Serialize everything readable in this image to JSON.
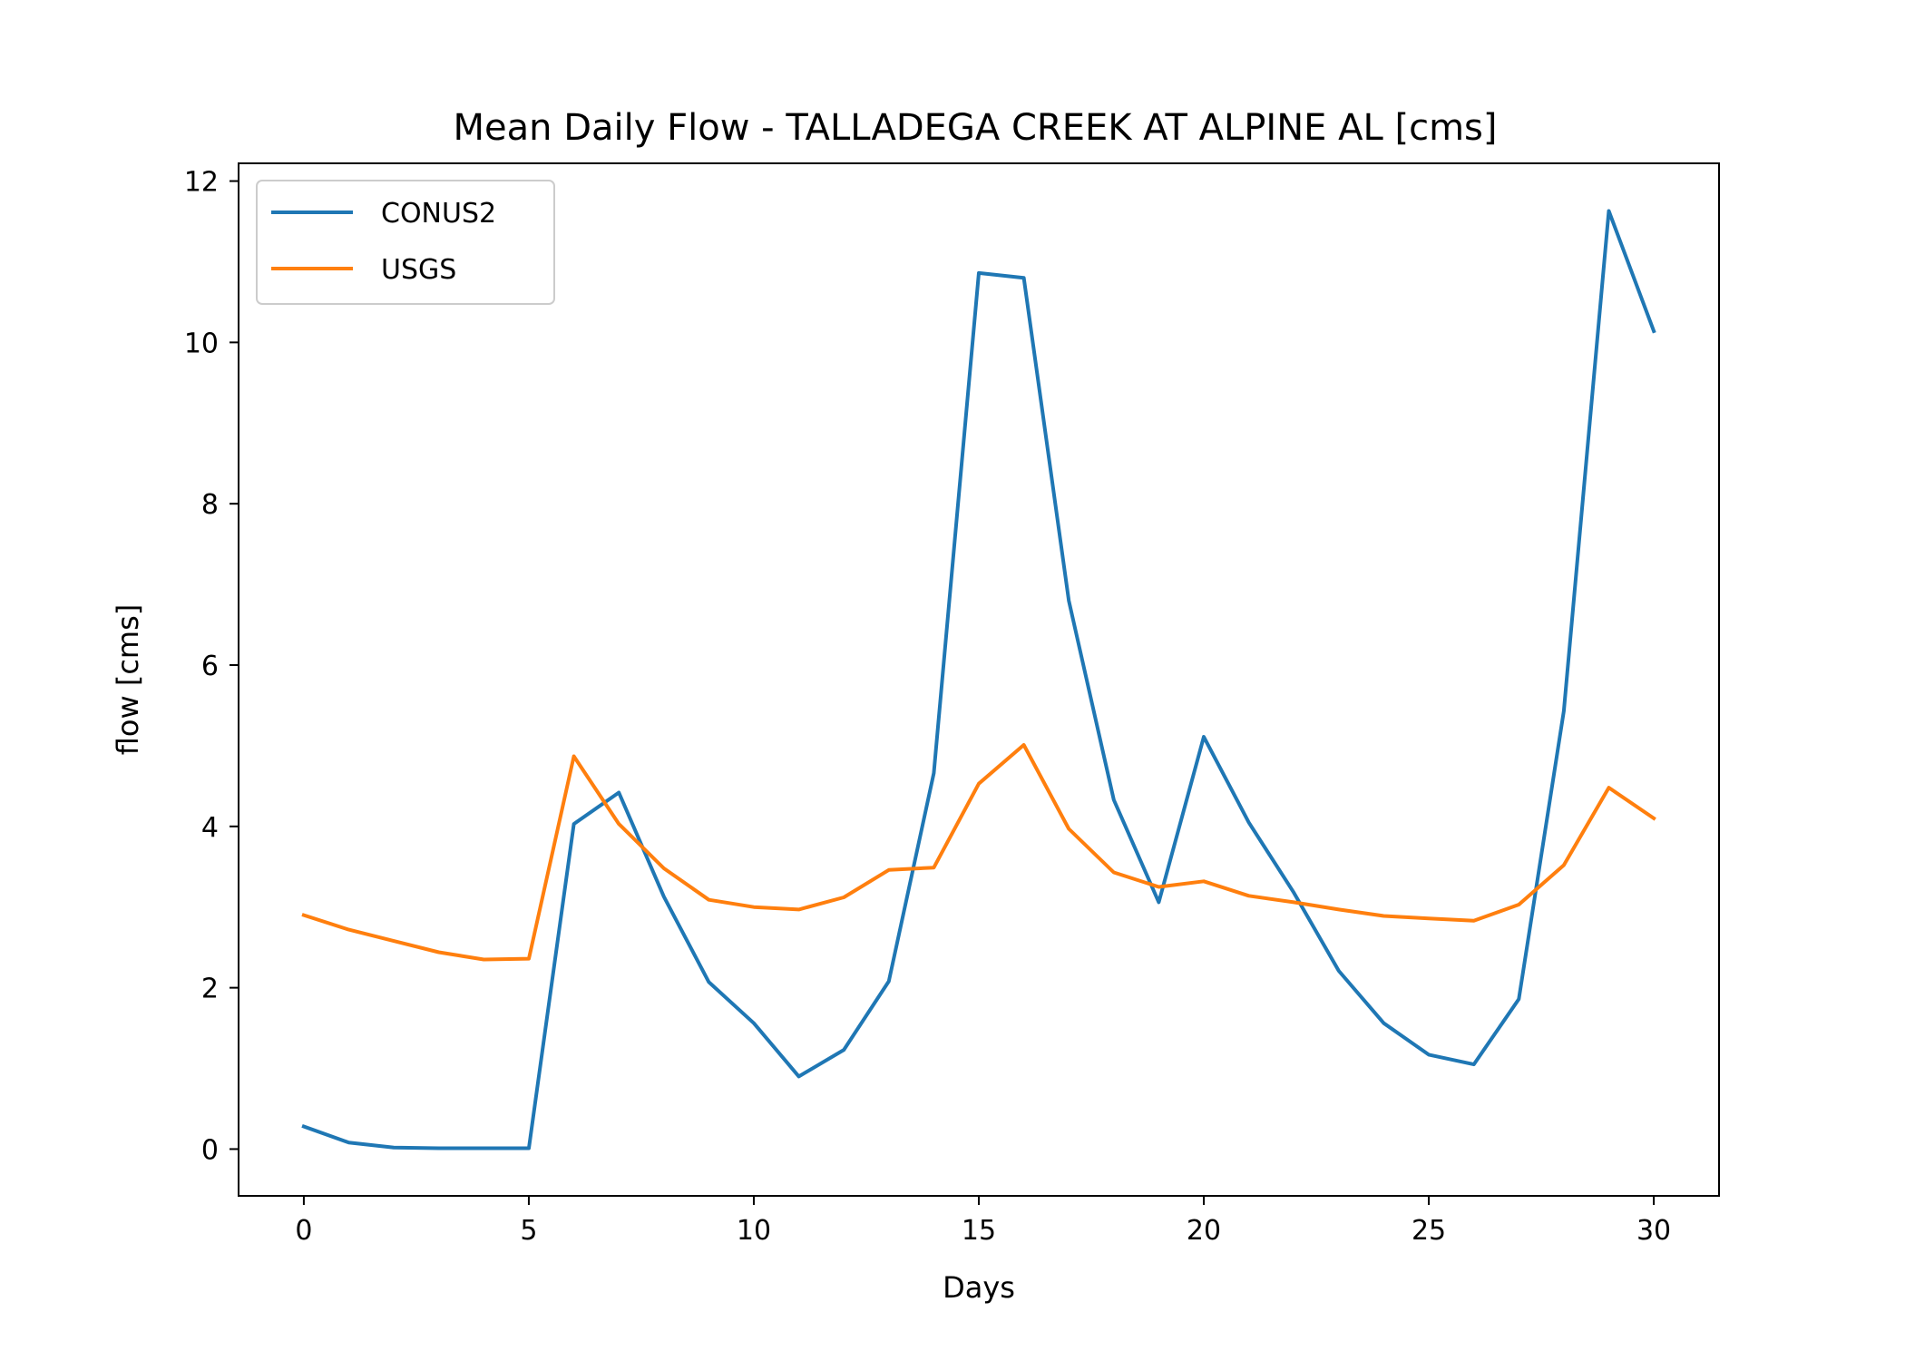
{
  "chart_data": {
    "type": "line",
    "title": "Mean Daily Flow - TALLADEGA CREEK AT ALPINE AL [cms]",
    "xlabel": "Days",
    "ylabel": "flow [cms]",
    "xlim": [
      -1.45,
      31.45
    ],
    "ylim": [
      -0.58,
      12.22
    ],
    "xticks": [
      0,
      5,
      10,
      15,
      20,
      25,
      30
    ],
    "yticks": [
      0,
      2,
      4,
      6,
      8,
      10,
      12
    ],
    "grid": false,
    "legend_position": "top-left",
    "x": [
      0,
      1,
      2,
      3,
      4,
      5,
      6,
      7,
      8,
      9,
      10,
      11,
      12,
      13,
      14,
      15,
      16,
      17,
      18,
      19,
      20,
      21,
      22,
      23,
      24,
      25,
      26,
      27,
      28,
      29,
      30
    ],
    "series": [
      {
        "name": "CONUS2",
        "color": "#1f77b4",
        "values": [
          0.28,
          0.08,
          0.02,
          0.01,
          0.01,
          0.01,
          4.03,
          4.42,
          3.13,
          2.07,
          1.56,
          0.9,
          1.23,
          2.08,
          4.66,
          10.86,
          10.8,
          6.8,
          4.33,
          3.06,
          5.11,
          4.05,
          3.18,
          2.21,
          1.56,
          1.17,
          1.05,
          1.86,
          5.43,
          11.63,
          10.14
        ]
      },
      {
        "name": "USGS",
        "color": "#ff7f0e",
        "values": [
          2.9,
          2.72,
          2.58,
          2.44,
          2.35,
          2.36,
          4.87,
          4.03,
          3.48,
          3.09,
          3.0,
          2.97,
          3.12,
          3.46,
          3.49,
          4.53,
          5.01,
          3.97,
          3.43,
          3.25,
          3.32,
          3.14,
          3.06,
          2.97,
          2.89,
          2.86,
          2.83,
          3.03,
          3.52,
          4.48,
          4.1
        ]
      }
    ]
  }
}
